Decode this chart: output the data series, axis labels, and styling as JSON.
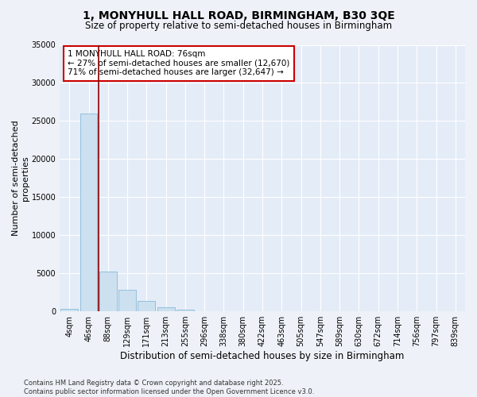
{
  "title_line1": "1, MONYHULL HALL ROAD, BIRMINGHAM, B30 3QE",
  "title_line2": "Size of property relative to semi-detached houses in Birmingham",
  "xlabel": "Distribution of semi-detached houses by size in Birmingham",
  "ylabel": "Number of semi-detached\nproperties",
  "categories": [
    "4sqm",
    "46sqm",
    "88sqm",
    "129sqm",
    "171sqm",
    "213sqm",
    "255sqm",
    "296sqm",
    "338sqm",
    "380sqm",
    "422sqm",
    "463sqm",
    "505sqm",
    "547sqm",
    "589sqm",
    "630sqm",
    "672sqm",
    "714sqm",
    "756sqm",
    "797sqm",
    "839sqm"
  ],
  "values": [
    300,
    26000,
    5200,
    2800,
    1400,
    550,
    200,
    0,
    0,
    0,
    0,
    0,
    0,
    0,
    0,
    0,
    0,
    0,
    0,
    0,
    0
  ],
  "bar_color": "#cce0f0",
  "bar_edge_color": "#7ab0d4",
  "vline_color": "#880000",
  "annotation_text": "1 MONYHULL HALL ROAD: 76sqm\n← 27% of semi-detached houses are smaller (12,670)\n71% of semi-detached houses are larger (32,647) →",
  "annotation_box_color": "#ffffff",
  "annotation_box_edge": "#cc0000",
  "ylim": [
    0,
    35000
  ],
  "yticks": [
    0,
    5000,
    10000,
    15000,
    20000,
    25000,
    30000,
    35000
  ],
  "bg_color": "#eef2f8",
  "plot_bg_color": "#e4ecf7",
  "grid_color": "#ffffff",
  "footer": "Contains HM Land Registry data © Crown copyright and database right 2025.\nContains public sector information licensed under the Open Government Licence v3.0.",
  "title_fontsize": 10,
  "subtitle_fontsize": 8.5,
  "axis_label_fontsize": 8,
  "tick_fontsize": 7,
  "footer_fontsize": 6
}
